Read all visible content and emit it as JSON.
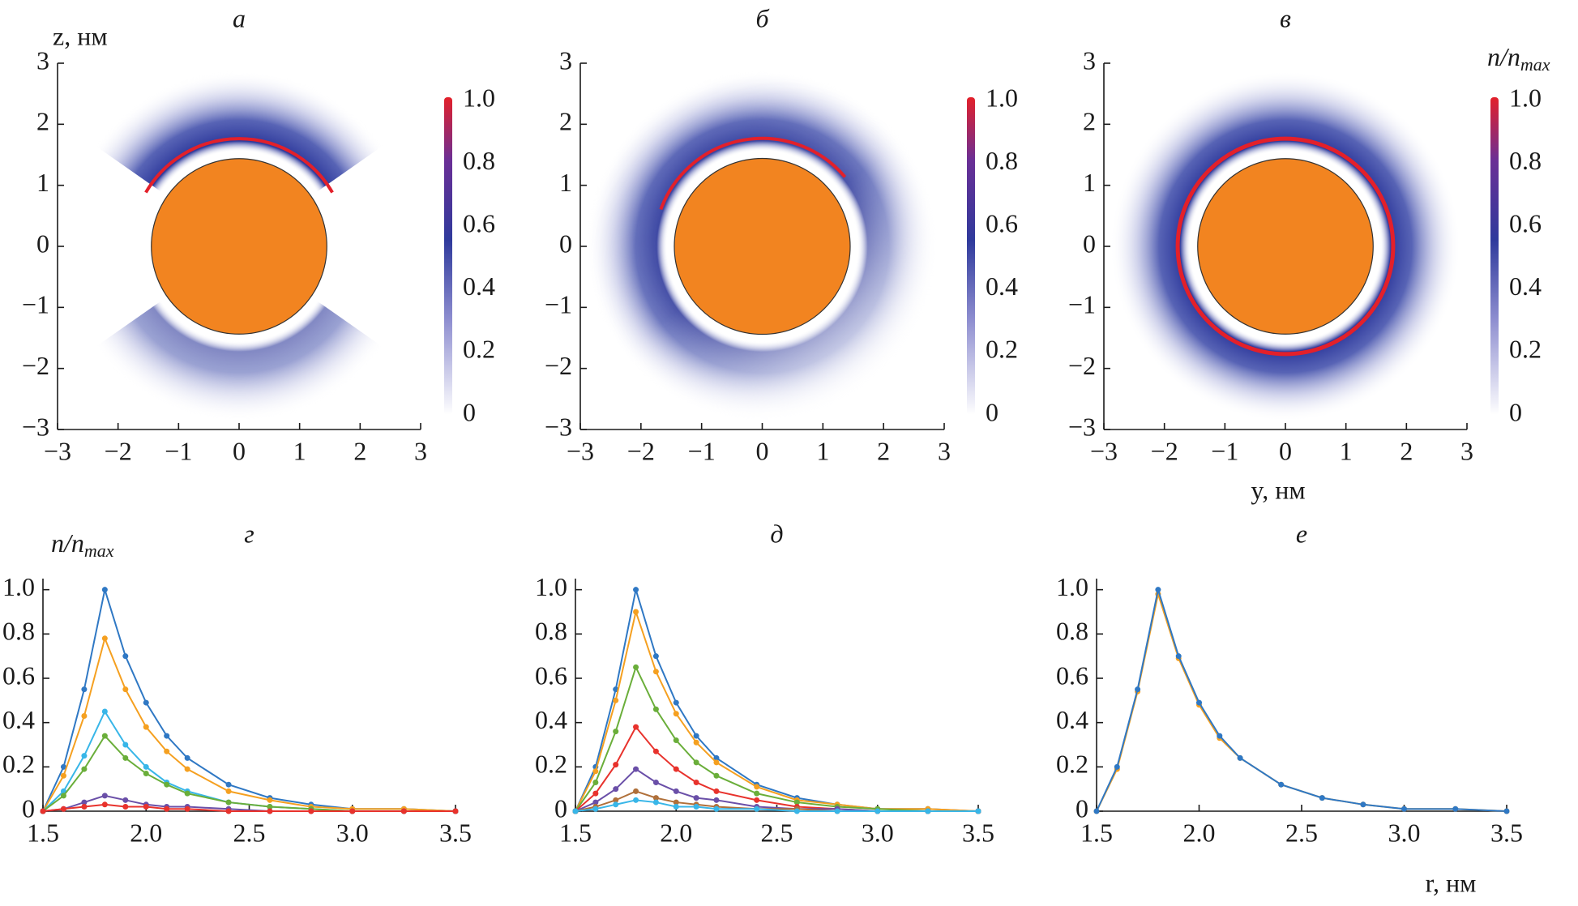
{
  "chart_data": [
    {
      "type": "heatmap",
      "title": "а",
      "ylabel": "z, нм",
      "xlim": [
        -3,
        3
      ],
      "ylim": [
        -3,
        3
      ],
      "xticks": [
        {
          "value": -3,
          "label": "−3"
        },
        {
          "value": -2,
          "label": "−2"
        },
        {
          "value": -1,
          "label": "−1"
        },
        0,
        1,
        2,
        3
      ],
      "yticks": [
        {
          "value": -3,
          "label": "−3"
        },
        {
          "value": -2,
          "label": "−2"
        },
        {
          "value": -1,
          "label": "−1"
        },
        0,
        1,
        2,
        3
      ],
      "clim": [
        0,
        1
      ],
      "cticks": [
        0,
        0.2,
        0.4,
        0.6,
        0.8,
        {
          "value": 1,
          "label": "1.0"
        }
      ]
    },
    {
      "type": "heatmap",
      "title": "б",
      "xlim": [
        -3,
        3
      ],
      "ylim": [
        -3,
        3
      ],
      "xticks": [
        {
          "value": -3,
          "label": "−3"
        },
        {
          "value": -2,
          "label": "−2"
        },
        {
          "value": -1,
          "label": "−1"
        },
        0,
        1,
        2,
        3
      ],
      "yticks": [
        {
          "value": -3,
          "label": "−3"
        },
        {
          "value": -2,
          "label": "−2"
        },
        {
          "value": -1,
          "label": "−1"
        },
        0,
        1,
        2,
        3
      ],
      "clim": [
        0,
        1
      ],
      "cticks": [
        0,
        0.2,
        0.4,
        0.6,
        0.8,
        {
          "value": 1,
          "label": "1.0"
        }
      ]
    },
    {
      "type": "heatmap",
      "title": "в",
      "xlabel": "y, нм",
      "clabel": {
        "text": "n/n",
        "sub": "max"
      },
      "xlim": [
        -3,
        3
      ],
      "ylim": [
        -3,
        3
      ],
      "xticks": [
        {
          "value": -3,
          "label": "−3"
        },
        {
          "value": -2,
          "label": "−2"
        },
        {
          "value": -1,
          "label": "−1"
        },
        0,
        1,
        2,
        3
      ],
      "yticks": [
        {
          "value": -3,
          "label": "−3"
        },
        {
          "value": -2,
          "label": "−2"
        },
        {
          "value": -1,
          "label": "−1"
        },
        0,
        1,
        2,
        3
      ],
      "clim": [
        0,
        1
      ],
      "cticks": [
        0,
        0.2,
        0.4,
        0.6,
        0.8,
        {
          "value": 1,
          "label": "1.0"
        }
      ]
    },
    {
      "type": "line",
      "title": "г",
      "ylabel": {
        "text": "n/n",
        "sub": "max"
      },
      "xlim": [
        1.5,
        3.5
      ],
      "ylim": [
        0,
        1.05
      ],
      "xticks": [
        1.5,
        {
          "value": 2,
          "label": "2.0"
        },
        2.5,
        {
          "value": 3,
          "label": "3.0"
        },
        3.5
      ],
      "yticks": [
        0,
        0.2,
        0.4,
        0.6,
        0.8,
        {
          "value": 1,
          "label": "1.0"
        }
      ],
      "x": [
        1.5,
        1.6,
        1.7,
        1.8,
        1.9,
        2.0,
        2.1,
        2.2,
        2.4,
        2.6,
        2.8,
        3.0,
        3.25,
        3.5
      ],
      "series": [
        {
          "color": "#2f78c4",
          "values": [
            0,
            0.2,
            0.55,
            1.0,
            0.7,
            0.49,
            0.34,
            0.24,
            0.12,
            0.06,
            0.03,
            0.01,
            0.01,
            0
          ]
        },
        {
          "color": "#f5a020",
          "values": [
            0,
            0.16,
            0.43,
            0.78,
            0.55,
            0.38,
            0.27,
            0.19,
            0.09,
            0.05,
            0.02,
            0.01,
            0.01,
            0
          ]
        },
        {
          "color": "#38b6e8",
          "values": [
            0,
            0.09,
            0.25,
            0.45,
            0.3,
            0.2,
            0.13,
            0.09,
            0.04,
            0.02,
            0.01,
            0,
            0,
            0
          ]
        },
        {
          "color": "#6aae3a",
          "values": [
            0,
            0.07,
            0.19,
            0.34,
            0.24,
            0.17,
            0.12,
            0.08,
            0.04,
            0.02,
            0.01,
            0,
            0,
            0
          ]
        },
        {
          "color": "#6a4fa8",
          "values": [
            0,
            0.01,
            0.04,
            0.07,
            0.05,
            0.03,
            0.02,
            0.02,
            0.01,
            0,
            0,
            0,
            0,
            0
          ]
        },
        {
          "color": "#e8322c",
          "values": [
            0,
            0.01,
            0.02,
            0.03,
            0.02,
            0.02,
            0.01,
            0.01,
            0,
            0,
            0,
            0,
            0,
            0
          ]
        }
      ]
    },
    {
      "type": "line",
      "title": "д",
      "xlim": [
        1.5,
        3.5
      ],
      "ylim": [
        0,
        1.05
      ],
      "xticks": [
        1.5,
        {
          "value": 2,
          "label": "2.0"
        },
        2.5,
        {
          "value": 3,
          "label": "3.0"
        },
        3.5
      ],
      "yticks": [
        0,
        0.2,
        0.4,
        0.6,
        0.8,
        {
          "value": 1,
          "label": "1.0"
        }
      ],
      "x": [
        1.5,
        1.6,
        1.7,
        1.8,
        1.9,
        2.0,
        2.1,
        2.2,
        2.4,
        2.6,
        2.8,
        3.0,
        3.25,
        3.5
      ],
      "series": [
        {
          "color": "#2f78c4",
          "values": [
            0,
            0.2,
            0.55,
            1.0,
            0.7,
            0.49,
            0.34,
            0.24,
            0.12,
            0.06,
            0.03,
            0.01,
            0.01,
            0
          ]
        },
        {
          "color": "#f5a020",
          "values": [
            0,
            0.18,
            0.5,
            0.9,
            0.63,
            0.44,
            0.31,
            0.22,
            0.11,
            0.05,
            0.03,
            0.01,
            0.01,
            0
          ]
        },
        {
          "color": "#6aae3a",
          "values": [
            0,
            0.13,
            0.36,
            0.65,
            0.46,
            0.32,
            0.22,
            0.16,
            0.08,
            0.04,
            0.02,
            0.01,
            0,
            0
          ]
        },
        {
          "color": "#e8322c",
          "values": [
            0,
            0.08,
            0.21,
            0.38,
            0.27,
            0.19,
            0.13,
            0.09,
            0.05,
            0.02,
            0.01,
            0,
            0,
            0
          ]
        },
        {
          "color": "#6a4fa8",
          "values": [
            0,
            0.04,
            0.1,
            0.19,
            0.13,
            0.09,
            0.06,
            0.05,
            0.02,
            0.01,
            0.01,
            0,
            0,
            0
          ]
        },
        {
          "color": "#b0703a",
          "values": [
            0,
            0.02,
            0.05,
            0.09,
            0.06,
            0.04,
            0.03,
            0.02,
            0.01,
            0.01,
            0,
            0,
            0,
            0
          ]
        },
        {
          "color": "#38b6e8",
          "values": [
            0,
            0.01,
            0.03,
            0.05,
            0.04,
            0.02,
            0.02,
            0.01,
            0.01,
            0,
            0,
            0,
            0,
            0
          ]
        }
      ]
    },
    {
      "type": "line",
      "title": "е",
      "xlabel": "r, нм",
      "xlim": [
        1.5,
        3.5
      ],
      "ylim": [
        0,
        1.05
      ],
      "xticks": [
        1.5,
        {
          "value": 2,
          "label": "2.0"
        },
        2.5,
        {
          "value": 3,
          "label": "3.0"
        },
        3.5
      ],
      "yticks": [
        0,
        0.2,
        0.4,
        0.6,
        0.8,
        {
          "value": 1,
          "label": "1.0"
        }
      ],
      "x": [
        1.5,
        1.6,
        1.7,
        1.8,
        1.9,
        2.0,
        2.1,
        2.2,
        2.4,
        2.6,
        2.8,
        3.0,
        3.25,
        3.5
      ],
      "series": [
        {
          "color": "#f5a020",
          "values": [
            0,
            0.19,
            0.54,
            0.98,
            0.69,
            0.48,
            0.33,
            0.24,
            0.12,
            0.06,
            0.03,
            0.01,
            0.01,
            0
          ]
        },
        {
          "color": "#2f78c4",
          "values": [
            0,
            0.2,
            0.55,
            1.0,
            0.7,
            0.49,
            0.34,
            0.24,
            0.12,
            0.06,
            0.03,
            0.01,
            0.01,
            0
          ]
        }
      ]
    }
  ]
}
